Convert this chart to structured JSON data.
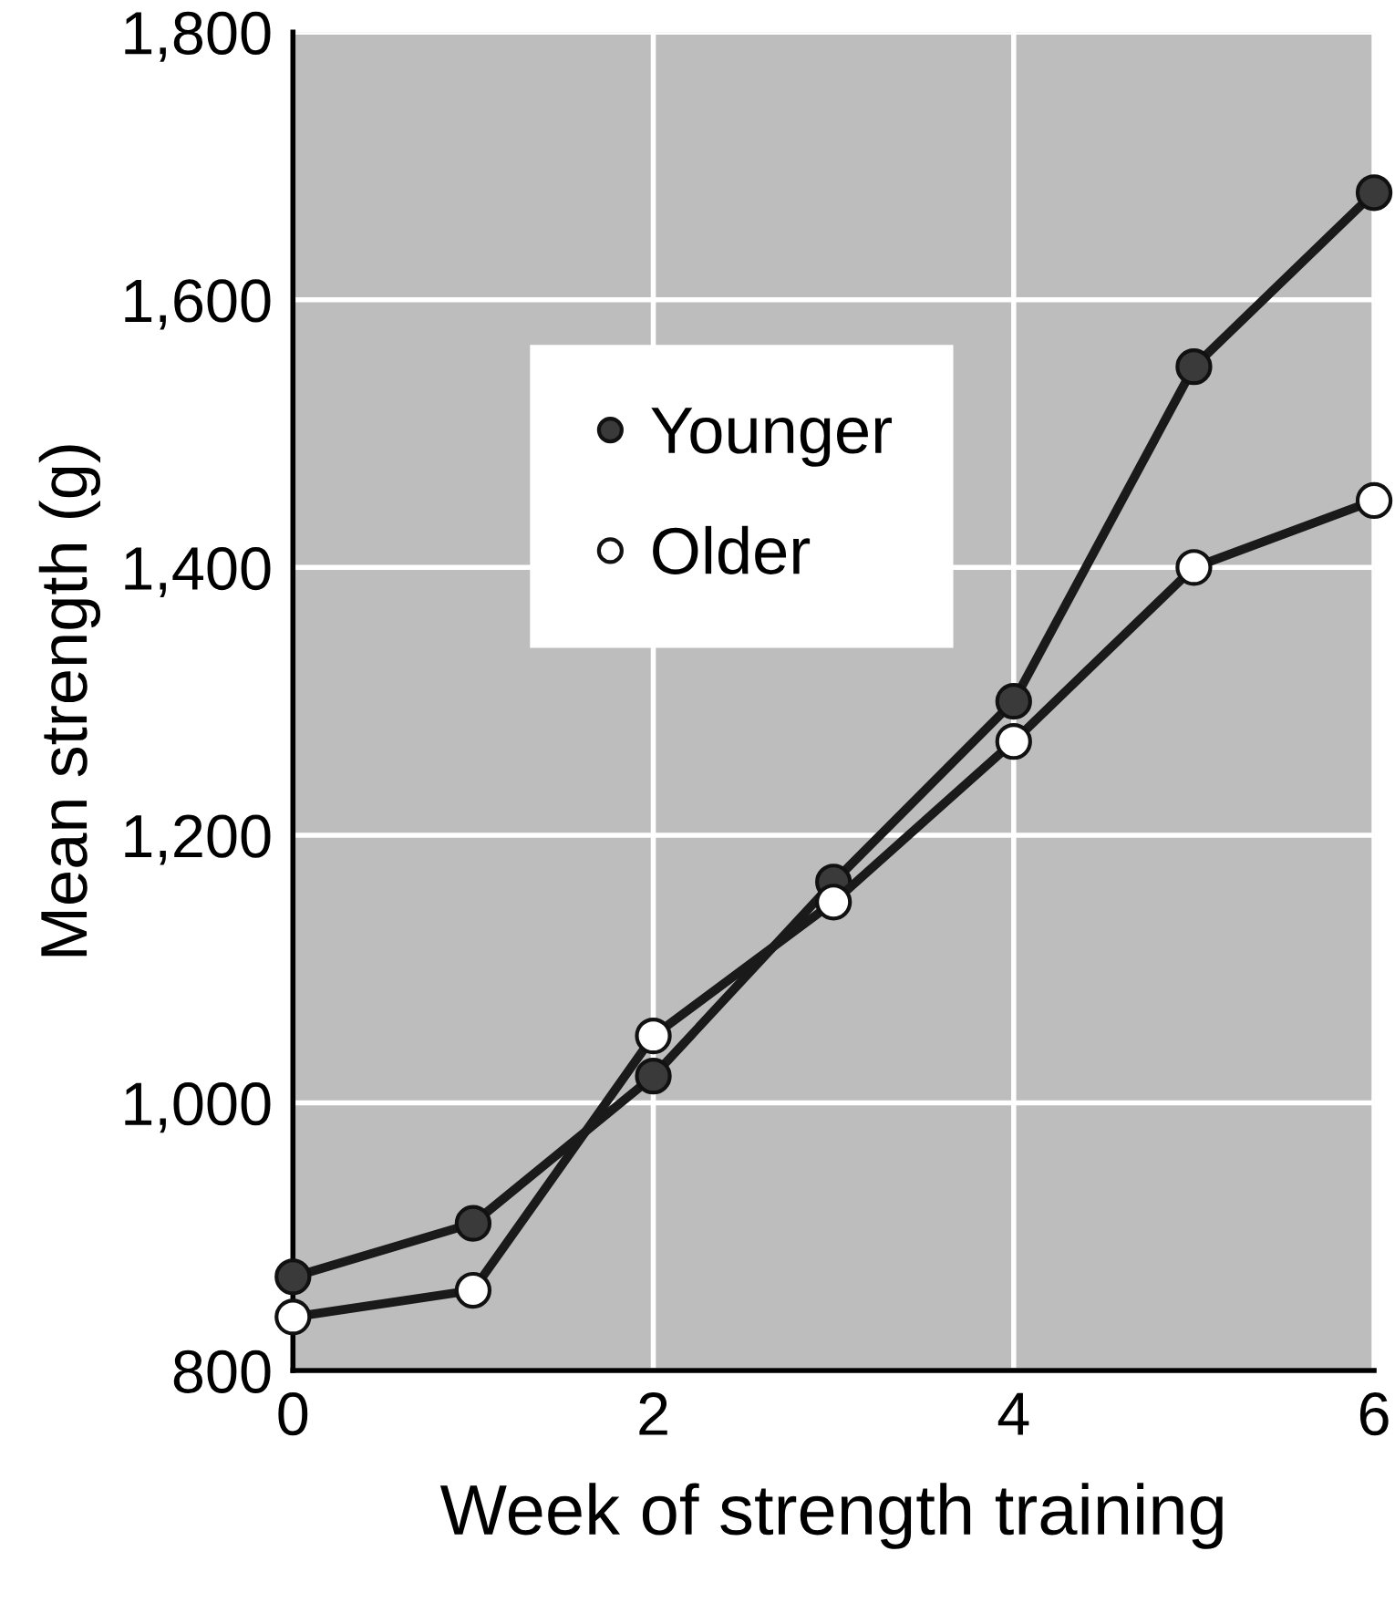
{
  "chart_data": {
    "type": "line",
    "xlabel": "Week of strength training",
    "ylabel": "Mean strength (g)",
    "x": [
      0,
      1,
      2,
      3,
      4,
      5,
      6
    ],
    "series": [
      {
        "name": "Younger",
        "color": "#3a3a3a",
        "values": [
          870,
          910,
          1020,
          1165,
          1300,
          1550,
          1680
        ]
      },
      {
        "name": "Older",
        "color": "#ffffff",
        "values": [
          840,
          860,
          1050,
          1150,
          1270,
          1400,
          1450
        ]
      }
    ],
    "xlim": [
      0,
      6
    ],
    "xticks": [
      0,
      2,
      4,
      6
    ],
    "ylim": [
      800,
      1800
    ],
    "yticks": [
      {
        "value": 800,
        "label": "800"
      },
      {
        "value": 1000,
        "label": "1,000"
      },
      {
        "value": 1200,
        "label": "1,200"
      },
      {
        "value": 1400,
        "label": "1,400"
      },
      {
        "value": 1600,
        "label": "1,600"
      },
      {
        "value": 1800,
        "label": "1,800"
      }
    ],
    "grid": true,
    "legend": "center left",
    "marker": "circle",
    "line_style": "solid"
  }
}
